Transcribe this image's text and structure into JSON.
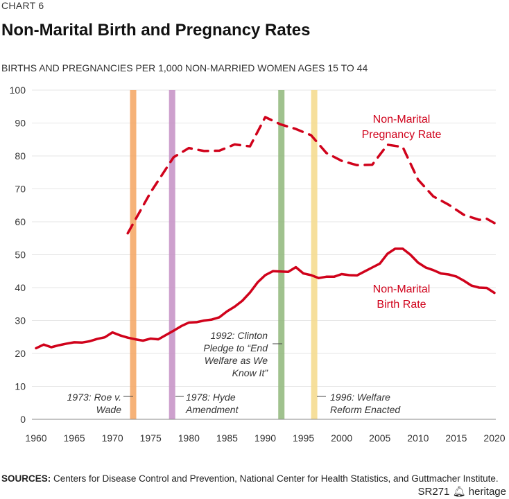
{
  "header": {
    "kicker": "CHART 6",
    "title": "Non-Marital Birth and Pregnancy Rates",
    "subtitle": "BIRTHS AND PREGNANCIES PER 1,000 NON-MARRIED WOMEN AGES 15 TO 44"
  },
  "footer": {
    "sources_label": "SOURCES:",
    "sources_text": "Centers for Disease Control and Prevention, National Center for Health Statistics, and Guttmacher Institute.",
    "report_id": "SR271",
    "brand": "heritage",
    "brand_icon": "liberty-bell-icon"
  },
  "chart_data": {
    "type": "line",
    "title": "Non-Marital Birth and Pregnancy Rates",
    "ylabel": "Births and pregnancies per 1,000 non-married women ages 15 to 44",
    "xlabel": "",
    "xlim": [
      1960,
      2020
    ],
    "ylim": [
      0,
      100
    ],
    "grid": true,
    "x_ticks": [
      1960,
      1965,
      1970,
      1975,
      1980,
      1985,
      1990,
      1995,
      2000,
      2005,
      2010,
      2015,
      2020
    ],
    "y_ticks": [
      0,
      10,
      20,
      30,
      40,
      50,
      60,
      70,
      80,
      90,
      100
    ],
    "colors": {
      "series": "#d0021b",
      "grid": "#e6e6e6",
      "axis": "#888888",
      "roe": "#f4a460",
      "hyde": "#c48fc4",
      "clinton": "#8fb77a",
      "welfare": "#f5d98a"
    },
    "series": [
      {
        "name": "Non-Marital Birth Rate",
        "label_lines": [
          "Non-Marital",
          "Birth Rate"
        ],
        "style": "solid",
        "x": [
          1960,
          1961,
          1962,
          1963,
          1964,
          1965,
          1966,
          1967,
          1968,
          1969,
          1970,
          1971,
          1972,
          1973,
          1974,
          1975,
          1976,
          1977,
          1978,
          1979,
          1980,
          1981,
          1982,
          1983,
          1984,
          1985,
          1986,
          1987,
          1988,
          1989,
          1990,
          1991,
          1992,
          1993,
          1994,
          1995,
          1996,
          1997,
          1998,
          1999,
          2000,
          2001,
          2002,
          2003,
          2004,
          2005,
          2006,
          2007,
          2008,
          2009,
          2010,
          2011,
          2012,
          2013,
          2014,
          2015,
          2016,
          2017,
          2018,
          2019,
          2020
        ],
        "values": [
          21.6,
          22.7,
          21.9,
          22.5,
          23.0,
          23.4,
          23.3,
          23.7,
          24.4,
          24.9,
          26.4,
          25.5,
          24.8,
          24.3,
          23.9,
          24.5,
          24.3,
          25.6,
          26.9,
          28.3,
          29.4,
          29.5,
          30.0,
          30.3,
          31.0,
          32.8,
          34.2,
          36.0,
          38.5,
          41.6,
          43.8,
          45.0,
          44.9,
          44.8,
          46.2,
          44.3,
          43.8,
          42.9,
          43.3,
          43.3,
          44.1,
          43.8,
          43.7,
          44.9,
          46.1,
          47.3,
          50.3,
          51.8,
          51.8,
          50.0,
          47.6,
          46.1,
          45.3,
          44.3,
          44.0,
          43.4,
          42.1,
          40.6,
          40.0,
          39.9,
          38.4
        ]
      },
      {
        "name": "Non-Marital Pregnancy Rate",
        "label_lines": [
          "Non-Marital",
          "Pregnancy Rate"
        ],
        "style": "dashed",
        "x": [
          1972,
          1975,
          1978,
          1980,
          1982,
          1984,
          1986,
          1988,
          1990,
          1992,
          1994,
          1996,
          1998,
          2000,
          2002,
          2004,
          2006,
          2008,
          2010,
          2012,
          2014,
          2016,
          2018,
          2019,
          2020
        ],
        "values": [
          56.5,
          69,
          79.6,
          82.4,
          81.5,
          81.6,
          83.5,
          82.9,
          91.8,
          89.6,
          88.2,
          86.3,
          80.9,
          78.5,
          77.2,
          77.3,
          83.4,
          82.7,
          72.8,
          67.7,
          65.2,
          62.1,
          60.6,
          60.9,
          59.6
        ]
      }
    ],
    "annotations": [
      {
        "year": 1973,
        "band": [
          1972.3,
          1973.0
        ],
        "color_key": "roe",
        "lines": [
          "1973: Roe v.",
          "Wade"
        ],
        "side": "left"
      },
      {
        "year": 1978,
        "band": [
          1977.4,
          1978.1
        ],
        "color_key": "hyde",
        "lines": [
          "1978: Hyde",
          "Amendment"
        ],
        "side": "right"
      },
      {
        "year": 1992,
        "band": [
          1991.7,
          1992.4
        ],
        "color_key": "clinton",
        "lines": [
          "1992: Clinton",
          "Pledge to “End",
          "Welfare as We",
          "Know It”"
        ],
        "side": "left"
      },
      {
        "year": 1996,
        "band": [
          1996.0,
          1996.7
        ],
        "color_key": "welfare",
        "lines": [
          "1996: Welfare",
          "Reform Enacted"
        ],
        "side": "right"
      }
    ]
  }
}
